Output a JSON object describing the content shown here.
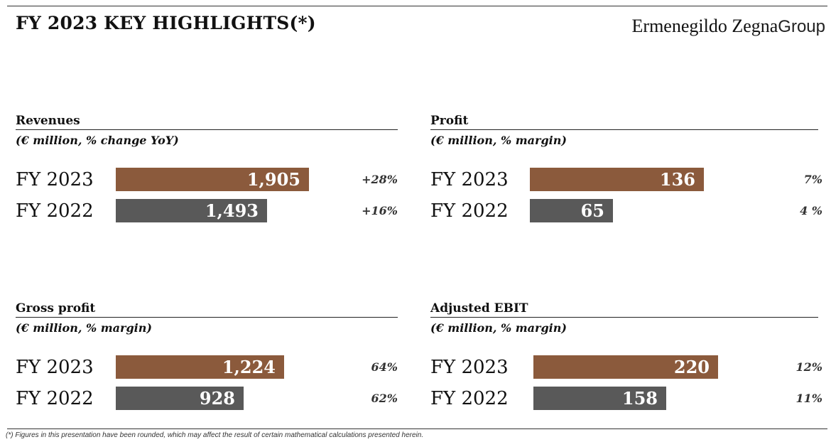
{
  "header": {
    "title": "FY 2023 KEY HIGHLIGHTS(*)",
    "logo_name": "Ermenegildo Zegna",
    "logo_group": "Group"
  },
  "colors": {
    "current_year": "#8B5A3C",
    "prior_year": "#595959"
  },
  "chart_data": [
    {
      "type": "bar",
      "title": "Revenues",
      "subtitle": "(€ million, % change YoY)",
      "categories": [
        "FY 2023",
        "FY 2022"
      ],
      "values": [
        1905,
        1493
      ],
      "value_labels": [
        "1,905",
        "1,493"
      ],
      "annotations": [
        "+28%",
        "+16%"
      ],
      "xlim": [
        0,
        2100
      ]
    },
    {
      "type": "bar",
      "title": "Profit",
      "subtitle": "(€ million, % margin)",
      "categories": [
        "FY 2023",
        "FY 2022"
      ],
      "values": [
        136,
        65
      ],
      "value_labels": [
        "136",
        "65"
      ],
      "annotations": [
        "7%",
        "4 %"
      ],
      "xlim": [
        0,
        150
      ]
    },
    {
      "type": "bar",
      "title": "Gross profit",
      "subtitle": "(€ million, % margin)",
      "categories": [
        "FY 2023",
        "FY 2022"
      ],
      "values": [
        1224,
        928
      ],
      "value_labels": [
        "1,224",
        "928"
      ],
      "annotations": [
        "64%",
        "62%"
      ],
      "xlim": [
        0,
        1250
      ]
    },
    {
      "type": "bar",
      "title": "Adjusted EBIT",
      "subtitle": "(€ million, % margin)",
      "categories": [
        "FY 2023",
        "FY 2022"
      ],
      "values": [
        220,
        158
      ],
      "value_labels": [
        "220",
        "158"
      ],
      "annotations": [
        "12%",
        "11%"
      ],
      "xlim": [
        0,
        245
      ]
    }
  ],
  "footnote": "(*)  Figures in this presentation have been rounded, which may affect the result of certain mathematical calculations presented herein."
}
